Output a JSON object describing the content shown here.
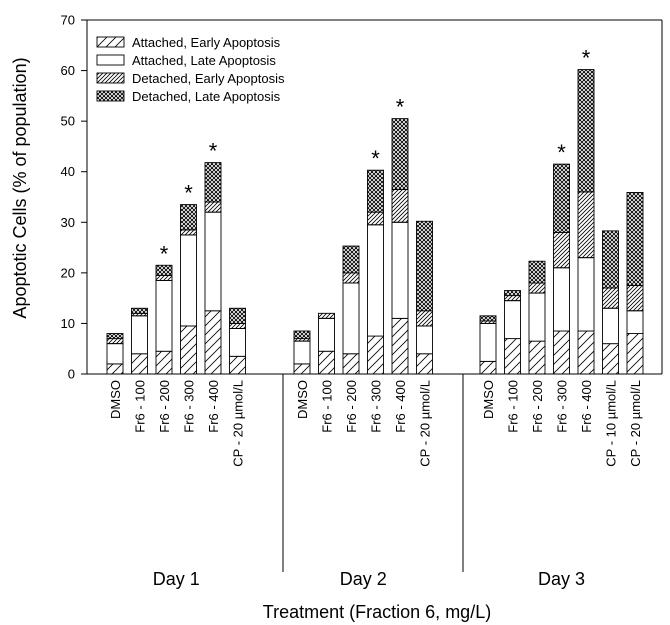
{
  "chart_data": {
    "type": "bar",
    "stacked": true,
    "title": "",
    "xlabel": "Treatment (Fraction 6, mg/L)",
    "ylabel": "Apoptotic Cells (% of population)",
    "ylim": [
      0,
      70
    ],
    "yticks": [
      0,
      10,
      20,
      30,
      40,
      50,
      60,
      70
    ],
    "grid": false,
    "legend_position": "top-left",
    "series": [
      {
        "name": "Attached, Early Apoptosis",
        "pattern": "diag-sparse"
      },
      {
        "name": "Attached, Late Apoptosis",
        "pattern": "empty"
      },
      {
        "name": "Detached, Early Apoptosis",
        "pattern": "diag-dense"
      },
      {
        "name": "Detached, Late Apoptosis",
        "pattern": "crosshatch"
      }
    ],
    "groups": [
      {
        "label": "Day 1",
        "bars": [
          {
            "label": "DMSO",
            "values": [
              2.0,
              4.0,
              1.0,
              1.0
            ],
            "star": false
          },
          {
            "label": "Fr6 - 100",
            "values": [
              4.0,
              7.5,
              0.5,
              1.0
            ],
            "star": false
          },
          {
            "label": "Fr6 - 200",
            "values": [
              4.5,
              14.0,
              1.0,
              2.0
            ],
            "star": true
          },
          {
            "label": "Fr6 - 300",
            "values": [
              9.5,
              18.0,
              1.0,
              5.0
            ],
            "star": true
          },
          {
            "label": "Fr6 - 400",
            "values": [
              12.5,
              19.5,
              2.0,
              7.8
            ],
            "star": true
          },
          {
            "label": "CP - 20 µmol/L",
            "values": [
              3.5,
              5.5,
              1.0,
              3.0
            ],
            "star": false
          }
        ]
      },
      {
        "label": "Day 2",
        "bars": [
          {
            "label": "DMSO",
            "values": [
              2.0,
              4.5,
              0.5,
              1.5
            ],
            "star": false
          },
          {
            "label": "Fr6 - 100",
            "values": [
              4.5,
              6.5,
              1.0,
              0.0
            ],
            "star": false
          },
          {
            "label": "Fr6 - 200",
            "values": [
              4.0,
              14.0,
              2.0,
              5.3
            ],
            "star": false
          },
          {
            "label": "Fr6 - 300",
            "values": [
              7.5,
              22.0,
              2.5,
              8.3
            ],
            "star": true
          },
          {
            "label": "Fr6 - 400",
            "values": [
              11.0,
              19.0,
              6.5,
              14.0
            ],
            "star": true
          },
          {
            "label": "CP - 20 µmol/L",
            "values": [
              4.0,
              5.5,
              3.0,
              17.7
            ],
            "star": false
          }
        ]
      },
      {
        "label": "Day 3",
        "bars": [
          {
            "label": "DMSO",
            "values": [
              2.5,
              7.5,
              0.5,
              1.0
            ],
            "star": false
          },
          {
            "label": "Fr6 - 100",
            "values": [
              7.0,
              7.5,
              1.0,
              1.0
            ],
            "star": false
          },
          {
            "label": "Fr6 - 200",
            "values": [
              6.5,
              9.5,
              2.0,
              4.3
            ],
            "star": false
          },
          {
            "label": "Fr6 - 300",
            "values": [
              8.5,
              12.5,
              7.0,
              13.5
            ],
            "star": true
          },
          {
            "label": "Fr6 - 400",
            "values": [
              8.5,
              14.5,
              13.0,
              24.2
            ],
            "star": true
          },
          {
            "label": "CP - 10 µmol/L",
            "values": [
              6.0,
              7.0,
              4.0,
              11.3
            ],
            "star": false
          },
          {
            "label": "CP - 20 µmol/L",
            "values": [
              8.0,
              4.5,
              5.0,
              18.4
            ],
            "star": false
          }
        ]
      }
    ],
    "annotation_symbol": "*"
  }
}
